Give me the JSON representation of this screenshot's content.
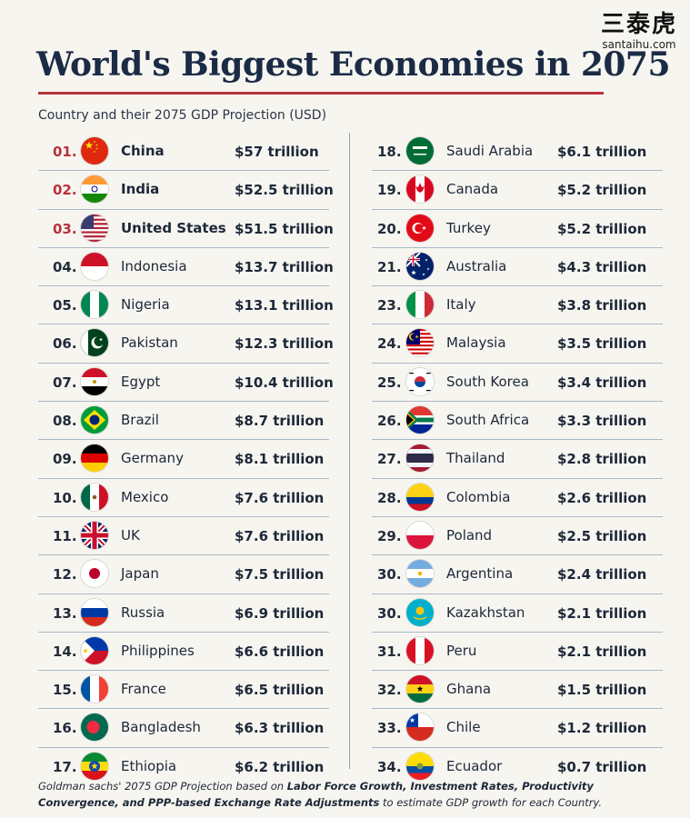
{
  "watermark": {
    "cn": "三泰虎",
    "en": "santaihu.com"
  },
  "title": "World's Biggest Economies in 2075",
  "subtitle": "Country and their 2075 GDP Projection (USD)",
  "footnote": {
    "parts": [
      {
        "text": "Goldman sachs' 2075 GDP Projection based on ",
        "bold": false
      },
      {
        "text": "Labor Force Growth, Investment Rates, Productivity Convergence, and PPP-based Exchange Rate Adjustments",
        "bold": true
      },
      {
        "text": " to estimate GDP growth for each Country.",
        "bold": false
      }
    ]
  },
  "colors": {
    "accent_red": "#b6323c",
    "title_navy": "#1b2b45",
    "row_rule": "#a9b8c6"
  },
  "chart_data": {
    "type": "table",
    "title": "World's Biggest Economies in 2075",
    "subtitle": "Country and their 2075 GDP Projection (USD)",
    "columns": [
      [
        {
          "rank": "01.",
          "country": "China",
          "value": "$57 trillion",
          "flag": "china",
          "top": true
        },
        {
          "rank": "02.",
          "country": "India",
          "value": "$52.5 trillion",
          "flag": "india",
          "top": true
        },
        {
          "rank": "03.",
          "country": "United States",
          "value": "$51.5 trillion",
          "flag": "usa",
          "top": true
        },
        {
          "rank": "04.",
          "country": "Indonesia",
          "value": "$13.7 trillion",
          "flag": "indonesia",
          "top": false
        },
        {
          "rank": "05.",
          "country": "Nigeria",
          "value": "$13.1 trillion",
          "flag": "nigeria",
          "top": false
        },
        {
          "rank": "06.",
          "country": "Pakistan",
          "value": "$12.3 trillion",
          "flag": "pakistan",
          "top": false
        },
        {
          "rank": "07.",
          "country": "Egypt",
          "value": "$10.4 trillion",
          "flag": "egypt",
          "top": false
        },
        {
          "rank": "08.",
          "country": "Brazil",
          "value": "$8.7 trillion",
          "flag": "brazil",
          "top": false
        },
        {
          "rank": "09.",
          "country": "Germany",
          "value": "$8.1 trillion",
          "flag": "germany",
          "top": false
        },
        {
          "rank": "10.",
          "country": "Mexico",
          "value": "$7.6 trillion",
          "flag": "mexico",
          "top": false
        },
        {
          "rank": "11.",
          "country": "UK",
          "value": "$7.6 trillion",
          "flag": "uk",
          "top": false
        },
        {
          "rank": "12.",
          "country": "Japan",
          "value": "$7.5 trillion",
          "flag": "japan",
          "top": false
        },
        {
          "rank": "13.",
          "country": "Russia",
          "value": "$6.9 trillion",
          "flag": "russia",
          "top": false
        },
        {
          "rank": "14.",
          "country": "Philippines",
          "value": "$6.6 trillion",
          "flag": "philippines",
          "top": false
        },
        {
          "rank": "15.",
          "country": "France",
          "value": "$6.5 trillion",
          "flag": "france",
          "top": false
        },
        {
          "rank": "16.",
          "country": "Bangladesh",
          "value": "$6.3 trillion",
          "flag": "bangladesh",
          "top": false
        },
        {
          "rank": "17.",
          "country": "Ethiopia",
          "value": "$6.2 trillion",
          "flag": "ethiopia",
          "top": false
        }
      ],
      [
        {
          "rank": "18.",
          "country": "Saudi Arabia",
          "value": "$6.1 trillion",
          "flag": "saudi",
          "top": false
        },
        {
          "rank": "19.",
          "country": "Canada",
          "value": "$5.2 trillion",
          "flag": "canada",
          "top": false
        },
        {
          "rank": "20.",
          "country": "Turkey",
          "value": "$5.2 trillion",
          "flag": "turkey",
          "top": false
        },
        {
          "rank": "21.",
          "country": "Australia",
          "value": "$4.3 trillion",
          "flag": "australia",
          "top": false
        },
        {
          "rank": "23.",
          "country": "Italy",
          "value": "$3.8 trillion",
          "flag": "italy",
          "top": false
        },
        {
          "rank": "24.",
          "country": "Malaysia",
          "value": "$3.5 trillion",
          "flag": "malaysia",
          "top": false
        },
        {
          "rank": "25.",
          "country": "South Korea",
          "value": "$3.4 trillion",
          "flag": "southkorea",
          "top": false
        },
        {
          "rank": "26.",
          "country": "South Africa",
          "value": "$3.3 trillion",
          "flag": "southafrica",
          "top": false
        },
        {
          "rank": "27.",
          "country": "Thailand",
          "value": "$2.8 trillion",
          "flag": "thailand",
          "top": false
        },
        {
          "rank": "28.",
          "country": "Colombia",
          "value": "$2.6 trillion",
          "flag": "colombia",
          "top": false
        },
        {
          "rank": "29.",
          "country": "Poland",
          "value": "$2.5 trillion",
          "flag": "poland",
          "top": false
        },
        {
          "rank": "30.",
          "country": "Argentina",
          "value": "$2.4 trillion",
          "flag": "argentina",
          "top": false
        },
        {
          "rank": "30.",
          "country": "Kazakhstan",
          "value": "$2.1 trillion",
          "flag": "kazakhstan",
          "top": false
        },
        {
          "rank": "31.",
          "country": "Peru",
          "value": "$2.1 trillion",
          "flag": "peru",
          "top": false
        },
        {
          "rank": "32.",
          "country": "Ghana",
          "value": "$1.5 trillion",
          "flag": "ghana",
          "top": false
        },
        {
          "rank": "33.",
          "country": "Chile",
          "value": "$1.2 trillion",
          "flag": "chile",
          "top": false
        },
        {
          "rank": "34.",
          "country": "Ecuador",
          "value": "$0.7 trillion",
          "flag": "ecuador",
          "top": false
        }
      ]
    ]
  }
}
